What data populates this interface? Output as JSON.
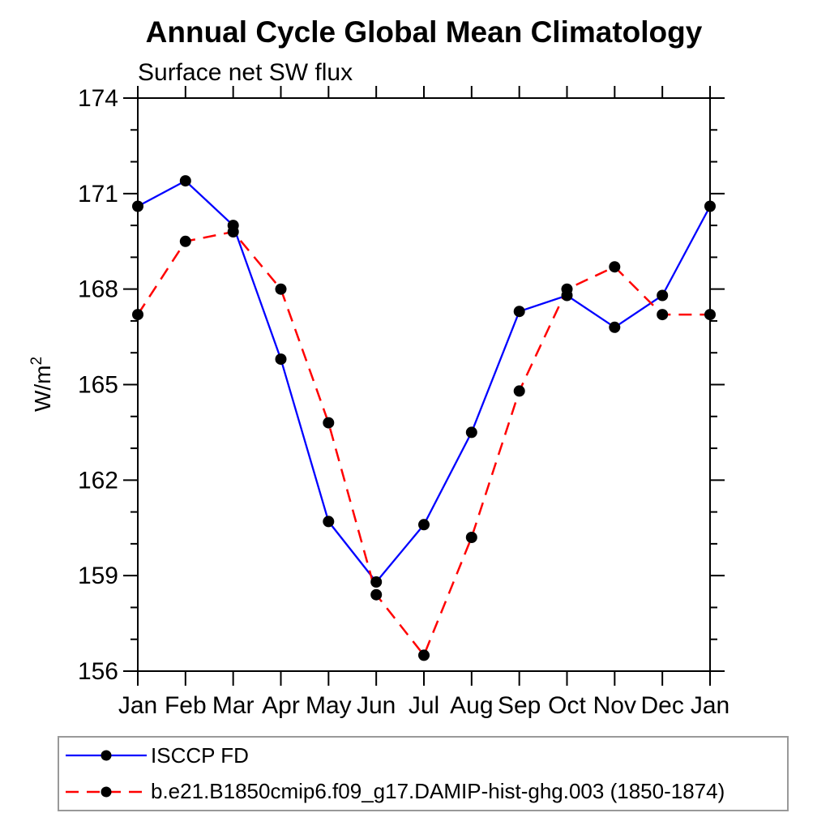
{
  "title": "Annual Cycle Global Mean Climatology",
  "subtitle": "Surface net SW flux",
  "ylabel_base": "W/m",
  "ylabel_sup": "2",
  "legend": {
    "items": [
      {
        "label": "ISCCP FD",
        "color": "#0000ff",
        "style": "solid",
        "marker": "filled-circle"
      },
      {
        "label": "b.e21.B1850cmip6.f09_g17.DAMIP-hist-ghg.003 (1850-1874)",
        "color": "#ff0000",
        "style": "dashed",
        "marker": "filled-circle"
      }
    ]
  },
  "chart_data": {
    "type": "line",
    "title": "Annual Cycle Global Mean Climatology",
    "subtitle": "Surface net SW flux",
    "ylabel": "W/m²",
    "xlabel": "",
    "categories": [
      "Jan",
      "Feb",
      "Mar",
      "Apr",
      "May",
      "Jun",
      "Jul",
      "Aug",
      "Sep",
      "Oct",
      "Nov",
      "Dec",
      "Jan"
    ],
    "series": [
      {
        "name": "ISCCP FD",
        "color": "#0000ff",
        "line_style": "solid",
        "marker": "filled-circle",
        "marker_color": "#000000",
        "values": [
          170.6,
          171.4,
          170.0,
          165.8,
          160.7,
          158.8,
          160.6,
          163.5,
          167.3,
          167.8,
          166.8,
          167.8,
          170.6
        ]
      },
      {
        "name": "b.e21.B1850cmip6.f09_g17.DAMIP-hist-ghg.003 (1850-1874)",
        "color": "#ff0000",
        "line_style": "dashed",
        "marker": "filled-circle",
        "marker_color": "#000000",
        "values": [
          167.2,
          169.5,
          169.8,
          168.0,
          163.8,
          158.4,
          156.5,
          160.2,
          164.8,
          168.0,
          168.7,
          167.2,
          167.2
        ]
      }
    ],
    "ylim": [
      156,
      174
    ],
    "yticks": [
      156,
      159,
      162,
      165,
      168,
      171,
      174
    ],
    "minor_tick_interval": 1,
    "grid": false,
    "frame": "box-outward-ticks",
    "legend_position": "bottom-left-box"
  }
}
